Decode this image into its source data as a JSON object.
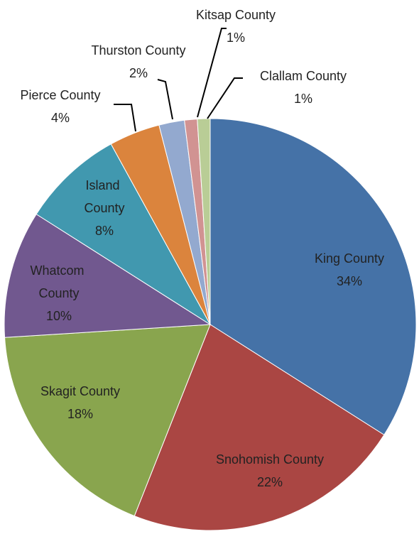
{
  "chart_data": {
    "type": "pie",
    "categories": [
      "King County",
      "Snohomish County",
      "Skagit County",
      "Whatcom County",
      "Island County",
      "Pierce County",
      "Thurston County",
      "Kitsap County",
      "Clallam County"
    ],
    "values": [
      34,
      22,
      18,
      10,
      8,
      4,
      2,
      1,
      1
    ],
    "value_labels": [
      "34%",
      "22%",
      "18%",
      "10%",
      "8%",
      "4%",
      "2%",
      "1%",
      "1%"
    ],
    "colors": [
      "#4572a7",
      "#aa4643",
      "#89a54e",
      "#71588f",
      "#4198af",
      "#db843d",
      "#93a9cf",
      "#d19392",
      "#b9cd96"
    ]
  }
}
